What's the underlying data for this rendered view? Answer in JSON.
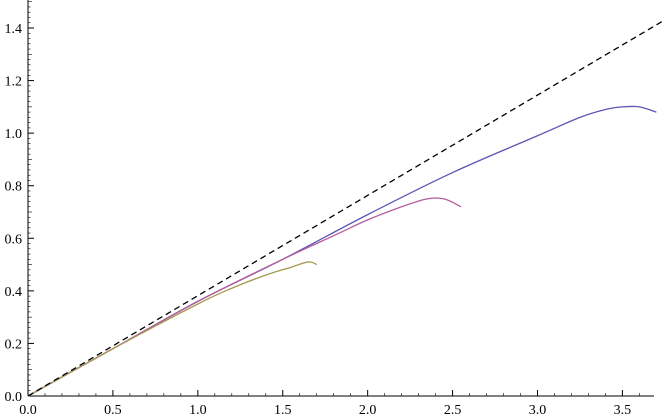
{
  "chart_data": {
    "type": "line",
    "title": "",
    "xlabel": "",
    "ylabel": "",
    "xlim": [
      0,
      3.8
    ],
    "ylim": [
      0,
      1.5
    ],
    "grid": false,
    "x_ticks": [
      "0.0",
      "0.5",
      "1.0",
      "1.5",
      "2.0",
      "2.5",
      "3.0",
      "3.5"
    ],
    "x_tick_values": [
      0,
      0.5,
      1.0,
      1.5,
      2.0,
      2.5,
      3.0,
      3.5
    ],
    "y_ticks": [
      "0.0",
      "0.2",
      "0.4",
      "0.6",
      "0.8",
      "1.0",
      "1.2",
      "1.4"
    ],
    "y_tick_values": [
      0,
      0.2,
      0.4,
      0.6,
      0.8,
      1.0,
      1.2,
      1.4
    ],
    "series": [
      {
        "color": "#5b56b4",
        "style": "solid",
        "x": [
          0,
          0.5,
          1.0,
          1.5,
          2.0,
          2.5,
          3.0,
          3.25,
          3.4,
          3.5,
          3.6,
          3.7
        ],
        "y": [
          0,
          0.18,
          0.36,
          0.52,
          0.69,
          0.85,
          0.99,
          1.06,
          1.09,
          1.1,
          1.1,
          1.08
        ]
      },
      {
        "color": "#b35c9a",
        "style": "solid",
        "x": [
          0,
          0.5,
          1.0,
          1.5,
          1.8,
          2.0,
          2.2,
          2.35,
          2.45,
          2.55
        ],
        "y": [
          0,
          0.18,
          0.36,
          0.52,
          0.61,
          0.67,
          0.72,
          0.75,
          0.75,
          0.72
        ]
      },
      {
        "color": "#a59a4f",
        "style": "solid",
        "x": [
          0,
          0.5,
          1.0,
          1.2,
          1.4,
          1.55,
          1.65,
          1.7
        ],
        "y": [
          0,
          0.18,
          0.35,
          0.41,
          0.46,
          0.49,
          0.51,
          0.5
        ]
      },
      {
        "color": "#000000",
        "style": "dashed",
        "x": [
          0,
          3.8
        ],
        "y": [
          0,
          1.45
        ]
      }
    ]
  }
}
